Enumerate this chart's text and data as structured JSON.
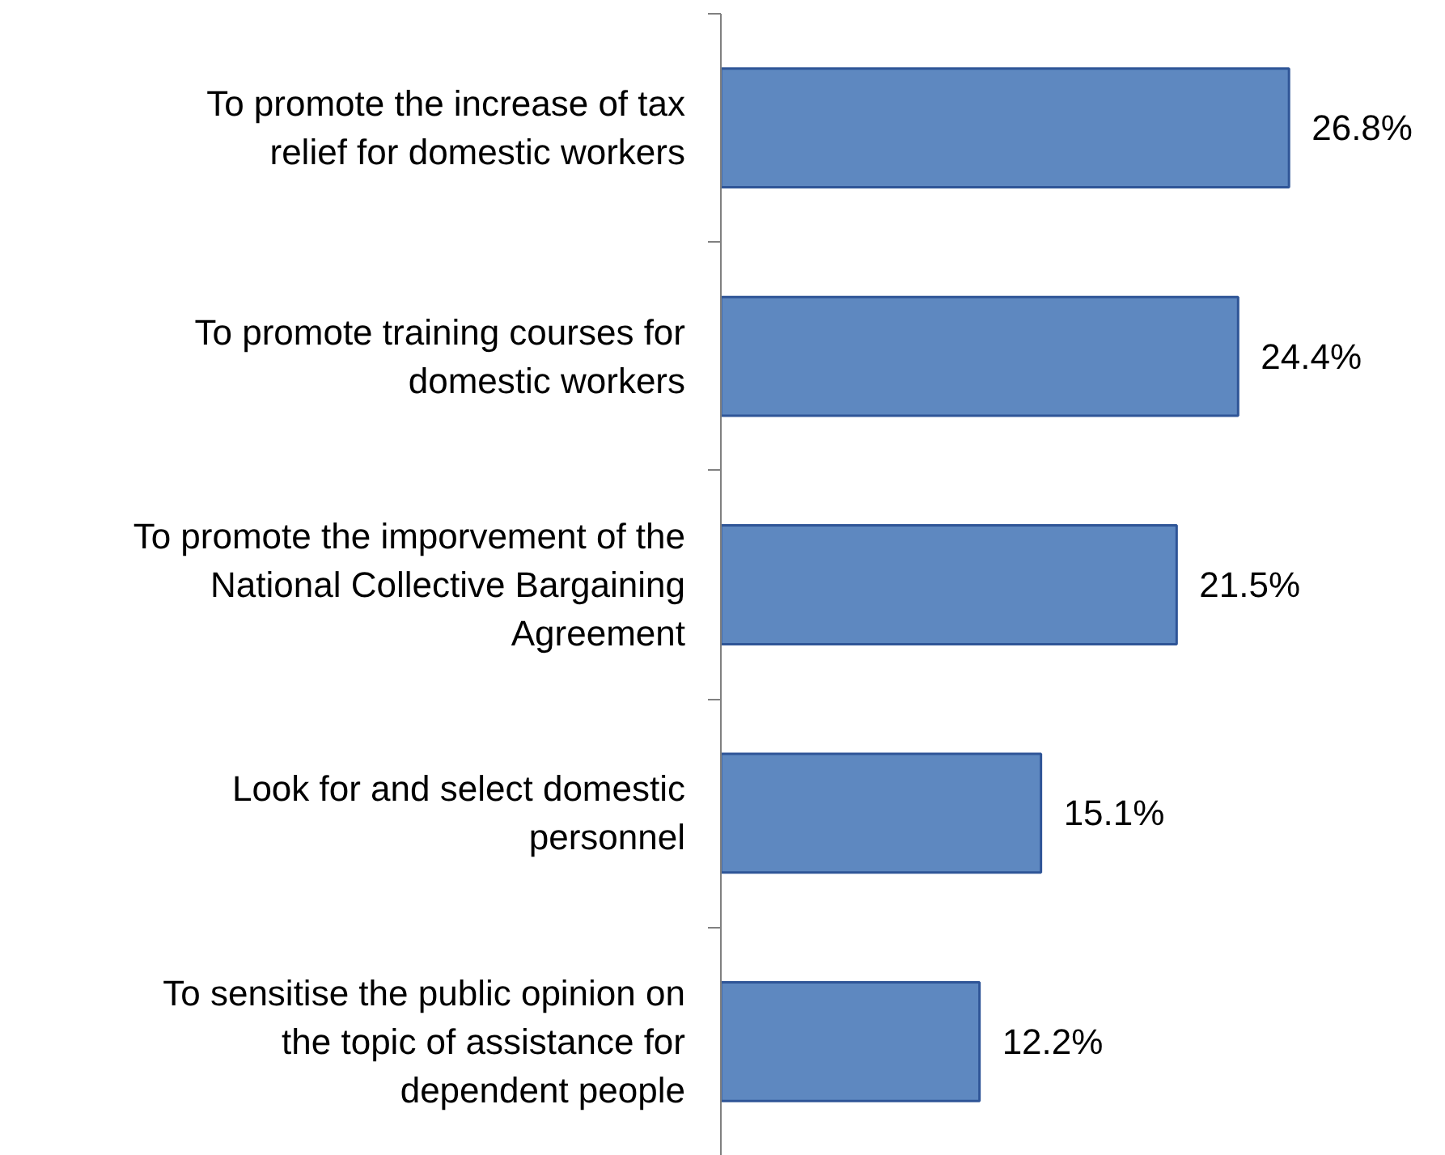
{
  "chart_data": {
    "type": "bar",
    "orientation": "horizontal",
    "categories": [
      "To promote the increase of tax relief for domestic workers",
      "To promote training courses for domestic workers",
      "To promote the imporvement of the National Collective Bargaining Agreement",
      "Look for and select domestic personnel",
      "To sensitise the public opinion on the topic of assistance for dependent people"
    ],
    "values": [
      26.8,
      24.4,
      21.5,
      15.1,
      12.2
    ],
    "color": "#5e88c0",
    "data_labels": true,
    "value_labels": [
      "26.8%",
      "24.4%",
      "21.5%",
      "15.1%",
      "12.2%"
    ],
    "grid": false
  }
}
